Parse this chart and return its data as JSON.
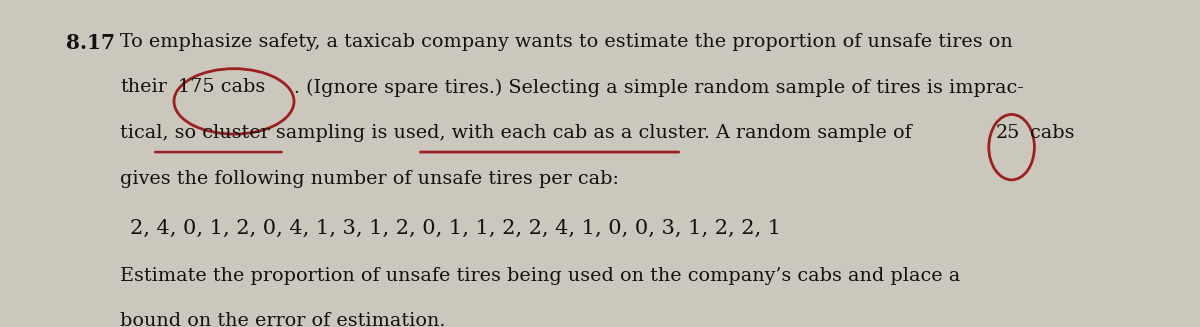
{
  "problem_number": "8.17",
  "line1": "To emphasize safety, a taxicab company wants to estimate the proportion of unsafe tires on",
  "line2a": "their",
  "line2b": "175 cabs",
  "line2c": ". (Ignore spare tires.) Selecting a simple random sample of tires is imprac-",
  "line3": "tical, so cluster sampling is used, with each cab as a cluster. A random sample of",
  "line3_circ": "25",
  "line3_post": "cabs",
  "line4": "gives the following number of unsafe tires per cab:",
  "data_line": "2, 4, 0, 1, 2, 0, 4, 1, 3, 1, 2, 0, 1, 1, 2, 2, 4, 1, 0, 0, 3, 1, 2, 2, 1",
  "line5": "Estimate the proportion of unsafe tires being used on the company’s cabs and place a",
  "line6": "bound on the error of estimation.",
  "bg_color": "#cbc7bc",
  "text_color": "#111111",
  "circle_color": "#9b2020",
  "underline_color": "#9b2020",
  "fs_body": 13.8,
  "fs_data": 15.0,
  "fs_num": 14.5
}
